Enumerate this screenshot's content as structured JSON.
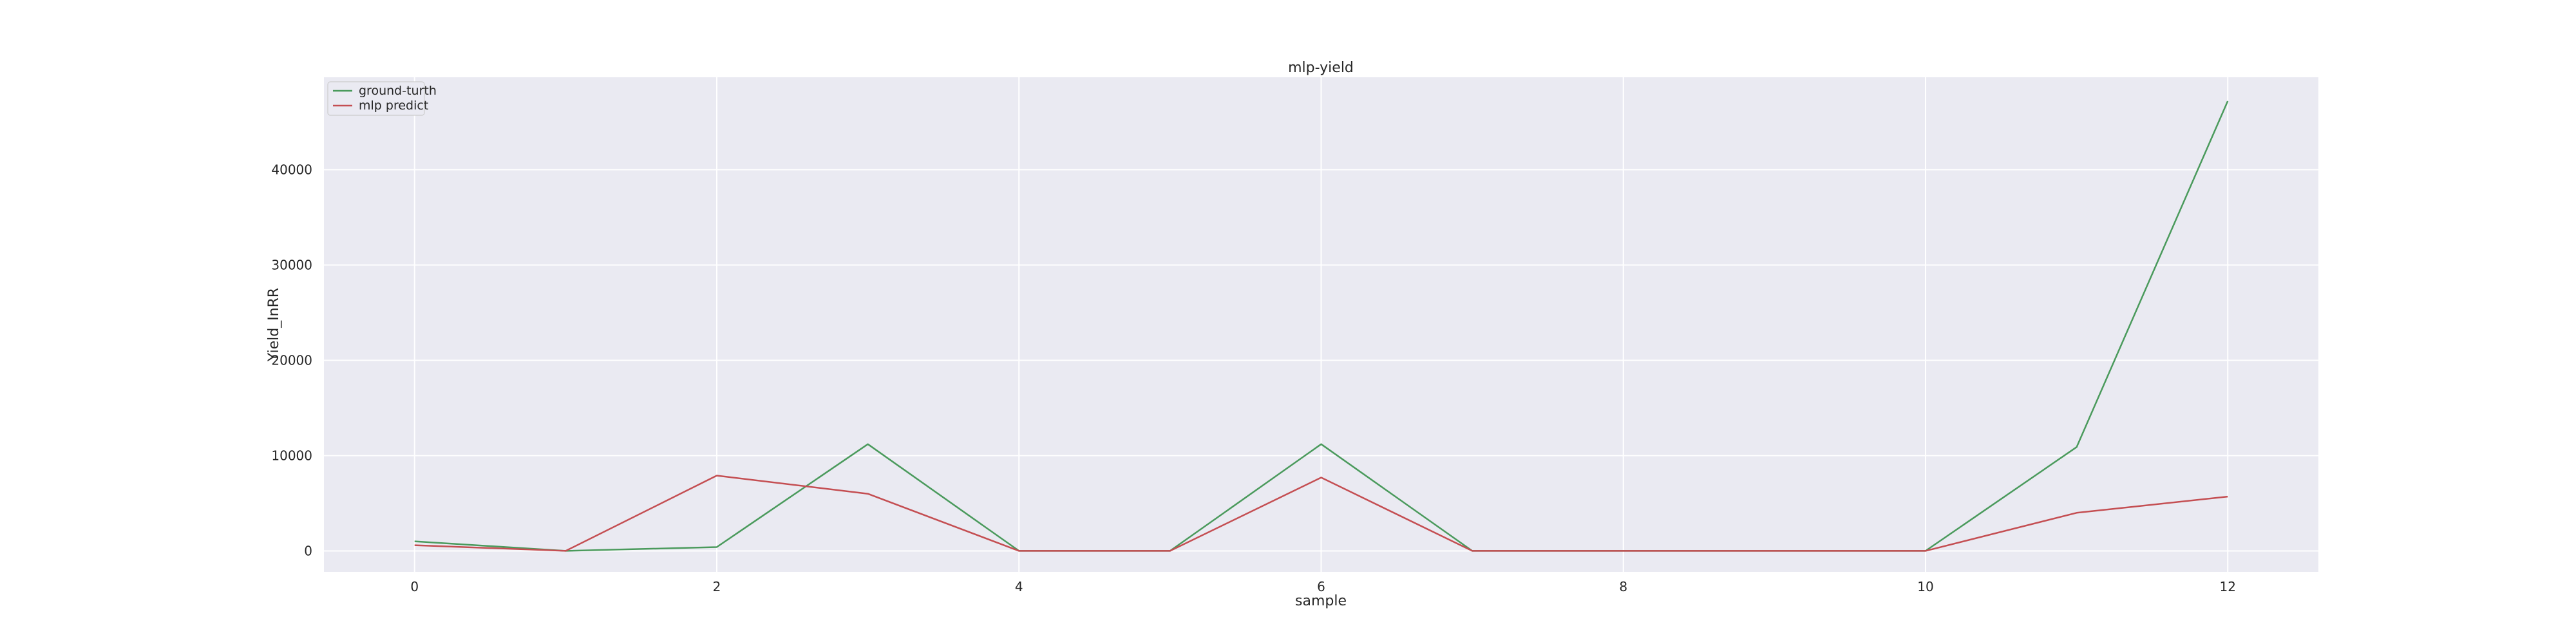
{
  "chart_data": {
    "type": "line",
    "title": "mlp-yield",
    "xlabel": "sample",
    "ylabel": "Yield_InRR",
    "x": [
      0,
      1,
      2,
      3,
      4,
      5,
      6,
      7,
      8,
      9,
      10,
      11,
      12
    ],
    "series": [
      {
        "name": "ground-turth",
        "color": "#4a9a5c",
        "values": [
          1000,
          0,
          400,
          11200,
          0,
          0,
          11200,
          0,
          0,
          0,
          0,
          10900,
          47200
        ]
      },
      {
        "name": "mlp predict",
        "color": "#c44e52",
        "values": [
          600,
          0,
          7900,
          6000,
          0,
          0,
          7700,
          0,
          0,
          0,
          0,
          4000,
          5700
        ]
      }
    ],
    "xlim": [
      -0.6,
      12.6
    ],
    "ylim": [
      -2200,
      49700
    ],
    "xticks": [
      0,
      2,
      4,
      6,
      8,
      10,
      12
    ],
    "yticks": [
      0,
      10000,
      20000,
      30000,
      40000
    ],
    "grid": true,
    "legend_position": "top-left",
    "background_color": "#eaeaf2"
  }
}
